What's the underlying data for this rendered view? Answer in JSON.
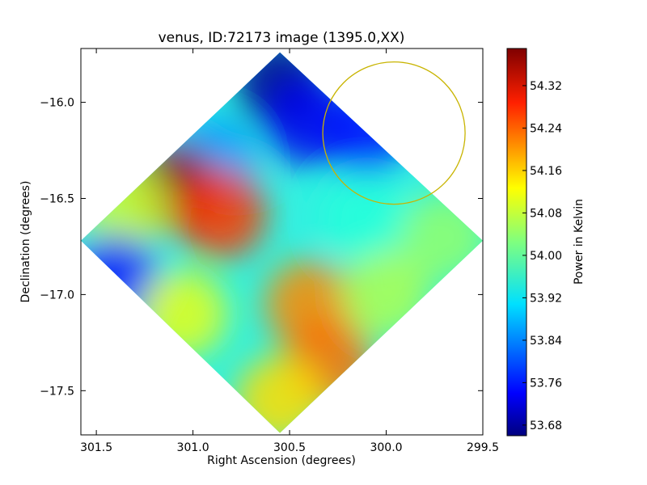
{
  "chart_data": {
    "type": "heatmap",
    "title": "venus, ID:72173 image (1395.0,XX)",
    "xlabel": "Right Ascension (degrees)",
    "ylabel": "Declination (degrees)",
    "xlim": [
      301.58,
      299.5
    ],
    "ylim": [
      -17.73,
      -15.72
    ],
    "xticks": [
      {
        "value": 301.5,
        "label": "301.5"
      },
      {
        "value": 301.0,
        "label": "301.0"
      },
      {
        "value": 300.5,
        "label": "300.5"
      },
      {
        "value": 300.0,
        "label": "300.0"
      },
      {
        "value": 299.5,
        "label": "299.5"
      }
    ],
    "yticks": [
      {
        "value": -16.0,
        "label": "−16.0"
      },
      {
        "value": -16.5,
        "label": "−16.5"
      },
      {
        "value": -17.0,
        "label": "−17.0"
      },
      {
        "value": -17.5,
        "label": "−17.5"
      }
    ],
    "colorbar": {
      "label": "Power in Kelvin",
      "colormap": "jet",
      "range": [
        53.66,
        54.39
      ],
      "ticks": [
        {
          "value": 53.68,
          "label": "53.68"
        },
        {
          "value": 53.76,
          "label": "53.76"
        },
        {
          "value": 53.84,
          "label": "53.84"
        },
        {
          "value": 53.92,
          "label": "53.92"
        },
        {
          "value": 54.0,
          "label": "54.00"
        },
        {
          "value": 54.08,
          "label": "54.08"
        },
        {
          "value": 54.16,
          "label": "54.16"
        },
        {
          "value": 54.24,
          "label": "54.24"
        },
        {
          "value": 54.32,
          "label": "54.32"
        }
      ]
    },
    "footprint": {
      "shape": "diamond",
      "corners": [
        {
          "ra": 300.55,
          "dec": -15.74
        },
        {
          "ra": 299.5,
          "dec": -16.72
        },
        {
          "ra": 300.55,
          "dec": -17.72
        },
        {
          "ra": 301.58,
          "dec": -16.72
        }
      ]
    },
    "regions": [
      {
        "ra": 300.55,
        "dec": -15.9,
        "value": 53.67
      },
      {
        "ra": 300.4,
        "dec": -16.1,
        "value": 53.74
      },
      {
        "ra": 300.1,
        "dec": -16.15,
        "value": 53.76
      },
      {
        "ra": 300.9,
        "dec": -16.3,
        "value": 53.86
      },
      {
        "ra": 301.1,
        "dec": -16.45,
        "value": 54.37
      },
      {
        "ra": 300.85,
        "dec": -16.58,
        "value": 54.26
      },
      {
        "ra": 301.35,
        "dec": -16.55,
        "value": 54.08
      },
      {
        "ra": 300.1,
        "dec": -16.6,
        "value": 53.96
      },
      {
        "ra": 299.7,
        "dec": -16.7,
        "value": 54.04
      },
      {
        "ra": 301.4,
        "dec": -16.92,
        "value": 53.76
      },
      {
        "ra": 301.05,
        "dec": -17.1,
        "value": 54.1
      },
      {
        "ra": 300.4,
        "dec": -17.05,
        "value": 54.2
      },
      {
        "ra": 300.3,
        "dec": -17.35,
        "value": 54.22
      },
      {
        "ra": 300.55,
        "dec": -17.55,
        "value": 54.14
      },
      {
        "ra": 300.0,
        "dec": -17.0,
        "value": 54.06
      }
    ],
    "annotation_circle": {
      "ra": 299.96,
      "dec": -16.16,
      "radius_deg": 0.37,
      "color": "#c8b400"
    },
    "grid": false
  }
}
